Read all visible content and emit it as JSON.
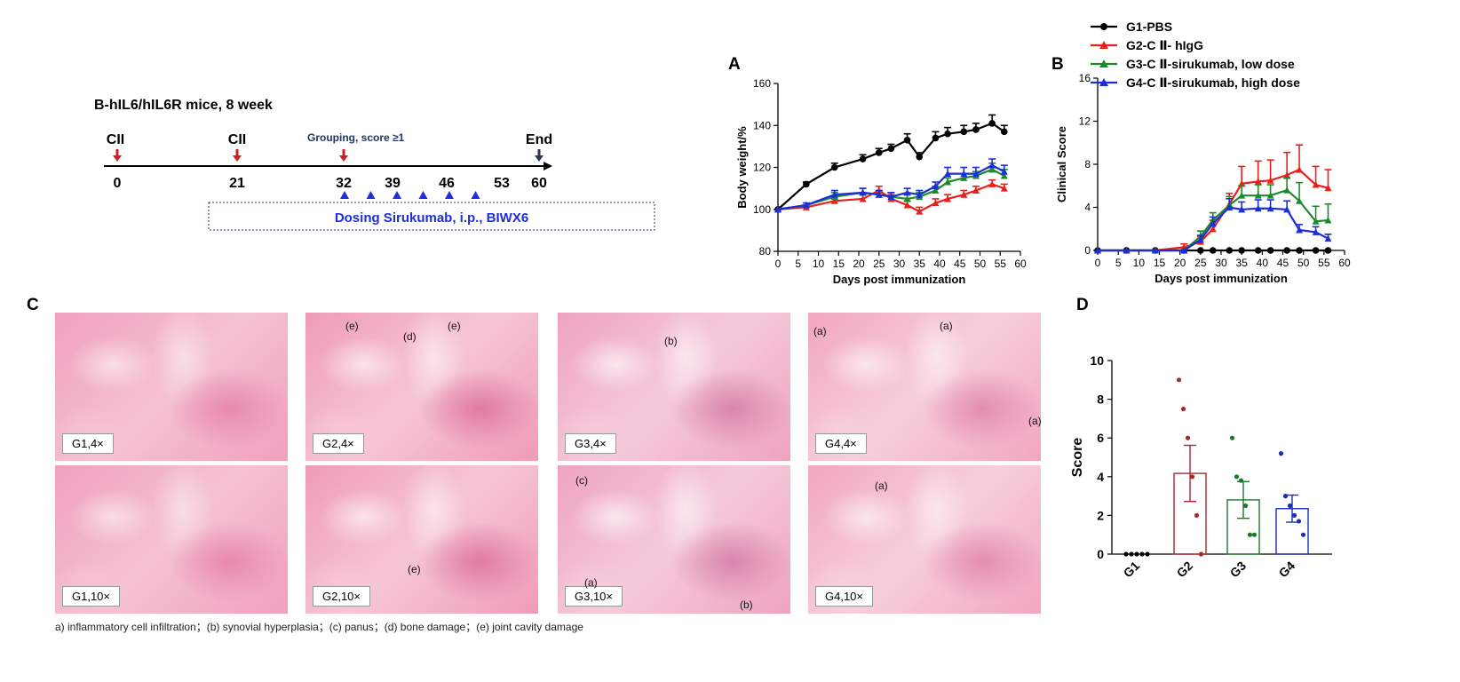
{
  "colors": {
    "G1": "#000000",
    "G2": "#e8201c",
    "G3": "#1d8a2a",
    "G4": "#1c2fd6",
    "G2_dark": "#a8272b",
    "G3_dark": "#1a7a2a",
    "G4_dark": "#1b2fb0",
    "arrow_red": "#cc1f1f",
    "arrow_navy": "#2b3a55",
    "dose_blue": "#1f2fd6",
    "timeline_text": "#1f3864"
  },
  "timeline": {
    "title": "B-hIL6/hIL6R mice,  8 week",
    "cii_label": "CII",
    "grouping_label": "Grouping,  score ≥1",
    "end_label": "End",
    "days": [
      "0",
      "21",
      "32",
      "39",
      "46",
      "53",
      "60"
    ],
    "dosing_label": "Dosing Sirukumab,  i.p.,  BIWX6",
    "dose_day_count": 6
  },
  "panel_letters": {
    "A": "A",
    "B": "B",
    "C": "C",
    "D": "D"
  },
  "legend": [
    "G1-PBS",
    "G2-C Ⅱ- hIgG",
    "G3-C Ⅱ-sirukumab, low dose",
    "G4-C Ⅱ-sirukumab, high dose"
  ],
  "histology": {
    "tiles": [
      {
        "label": "G1,4×",
        "annos": []
      },
      {
        "label": "G2,4×",
        "annos": [
          "(e)",
          "(d)",
          "(e)"
        ]
      },
      {
        "label": "G3,4×",
        "annos": [
          "(b)"
        ]
      },
      {
        "label": "G4,4×",
        "annos": [
          "(a)",
          "(a)",
          "(a)"
        ]
      },
      {
        "label": "G1,10×",
        "annos": []
      },
      {
        "label": "G2,10×",
        "annos": [
          "(e)"
        ]
      },
      {
        "label": "G3,10×",
        "annos": [
          "(c)",
          "(a)",
          "(b)"
        ]
      },
      {
        "label": "G4,10×",
        "annos": [
          "(a)"
        ]
      }
    ],
    "caption": "a) inflammatory cell infiltration；(b) synovial hyperplasia；(c) panus；(d) bone damage；(e) joint cavity damage"
  },
  "chart_data": [
    {
      "type": "line",
      "panel": "A",
      "xlabel": "Days post immunization",
      "ylabel": "Body weight/%",
      "xlim": [
        0,
        60
      ],
      "ylim": [
        80,
        160
      ],
      "xticks": [
        0,
        5,
        10,
        15,
        20,
        25,
        30,
        35,
        40,
        45,
        50,
        55,
        60
      ],
      "yticks": [
        80,
        100,
        120,
        140,
        160
      ],
      "series": [
        {
          "name": "G1-PBS",
          "marker": "circle",
          "x": [
            0,
            7,
            14,
            21,
            25,
            28,
            32,
            35,
            39,
            42,
            46,
            49,
            53,
            56
          ],
          "y": [
            100,
            112,
            120,
            124,
            127,
            129,
            133,
            125,
            134,
            136,
            137,
            138,
            141,
            137
          ],
          "err": [
            0,
            1,
            2,
            2,
            2,
            2,
            3,
            2,
            3,
            3,
            3,
            3,
            4,
            3
          ]
        },
        {
          "name": "G2-C Ⅱ- hIgG",
          "marker": "triangle",
          "x": [
            0,
            7,
            14,
            21,
            25,
            28,
            32,
            35,
            39,
            42,
            46,
            49,
            53,
            56
          ],
          "y": [
            100,
            101,
            104,
            105,
            109,
            105,
            102,
            99,
            103,
            105,
            107,
            109,
            112,
            110
          ],
          "err": [
            0,
            1,
            1,
            2,
            2,
            2,
            2,
            2,
            2,
            2,
            2,
            2,
            2,
            2
          ]
        },
        {
          "name": "G3-C Ⅱ-sirukumab, low dose",
          "marker": "triangle",
          "x": [
            0,
            7,
            14,
            21,
            25,
            28,
            32,
            35,
            39,
            42,
            46,
            49,
            53,
            56
          ],
          "y": [
            100,
            102,
            106,
            108,
            107,
            106,
            105,
            106,
            109,
            113,
            115,
            116,
            119,
            116
          ],
          "err": [
            0,
            1,
            2,
            2,
            2,
            2,
            2,
            2,
            2,
            2,
            2,
            2,
            3,
            3
          ]
        },
        {
          "name": "G4-C Ⅱ-sirukumab, high dose",
          "marker": "triangle",
          "x": [
            0,
            7,
            14,
            21,
            25,
            28,
            32,
            35,
            39,
            42,
            46,
            49,
            53,
            56
          ],
          "y": [
            100,
            102,
            107,
            108,
            107,
            106,
            108,
            107,
            111,
            117,
            117,
            117,
            121,
            118
          ],
          "err": [
            0,
            1,
            2,
            2,
            2,
            2,
            2,
            2,
            2,
            3,
            3,
            3,
            3,
            3
          ]
        }
      ]
    },
    {
      "type": "line",
      "panel": "B",
      "xlabel": "Days post immunization",
      "ylabel": "Clinical Score",
      "xlim": [
        0,
        60
      ],
      "ylim": [
        0,
        16
      ],
      "xticks": [
        0,
        5,
        10,
        15,
        20,
        25,
        30,
        35,
        40,
        45,
        50,
        55,
        60
      ],
      "yticks": [
        0,
        4,
        8,
        12,
        16
      ],
      "series": [
        {
          "name": "G1-PBS",
          "marker": "circle",
          "x": [
            0,
            7,
            14,
            21,
            25,
            28,
            32,
            35,
            39,
            42,
            46,
            49,
            53,
            56
          ],
          "y": [
            0,
            0,
            0,
            0,
            0,
            0,
            0,
            0,
            0,
            0,
            0,
            0,
            0,
            0
          ],
          "err": [
            0,
            0,
            0,
            0,
            0,
            0,
            0,
            0,
            0,
            0,
            0,
            0,
            0,
            0
          ]
        },
        {
          "name": "G2-C Ⅱ- hIgG",
          "marker": "triangle",
          "x": [
            0,
            7,
            14,
            21,
            25,
            28,
            32,
            35,
            39,
            42,
            46,
            49,
            53,
            56
          ],
          "y": [
            0,
            0,
            0,
            0.3,
            0.8,
            2,
            4.3,
            6.2,
            6.4,
            6.5,
            7,
            7.5,
            6.1,
            5.8
          ],
          "err": [
            0,
            0,
            0,
            0.3,
            0.5,
            0.8,
            1,
            1.6,
            1.9,
            1.9,
            2.1,
            2.3,
            1.7,
            1.7
          ]
        },
        {
          "name": "G3-C Ⅱ-sirukumab, low dose",
          "marker": "triangle",
          "x": [
            0,
            7,
            14,
            21,
            25,
            28,
            32,
            35,
            39,
            42,
            46,
            49,
            53,
            56
          ],
          "y": [
            0,
            0,
            0,
            0,
            1.3,
            2.8,
            4.2,
            5.1,
            5.1,
            5.1,
            5.6,
            4.6,
            2.7,
            2.8
          ],
          "err": [
            0,
            0,
            0,
            0,
            0.5,
            0.7,
            0.8,
            0.9,
            1,
            1,
            1.1,
            1.7,
            1.4,
            1.5
          ]
        },
        {
          "name": "G4-C Ⅱ-sirukumab, high dose",
          "marker": "triangle",
          "x": [
            0,
            7,
            14,
            21,
            25,
            28,
            32,
            35,
            39,
            42,
            46,
            49,
            53,
            56
          ],
          "y": [
            0,
            0,
            0,
            0,
            1,
            2.5,
            4,
            3.8,
            3.9,
            3.9,
            3.8,
            1.9,
            1.7,
            1.1
          ],
          "err": [
            0,
            0,
            0,
            0,
            0.4,
            0.6,
            0.8,
            0.7,
            0.8,
            0.8,
            0.8,
            0.5,
            0.5,
            0.4
          ]
        }
      ]
    },
    {
      "type": "bar",
      "panel": "D",
      "ylabel": "Score",
      "ylim": [
        0,
        10
      ],
      "yticks": [
        0,
        2,
        4,
        6,
        8,
        10
      ],
      "categories": [
        "G1",
        "G2",
        "G3",
        "G4"
      ],
      "values": [
        0,
        4.17,
        2.8,
        2.35
      ],
      "sem": [
        0,
        1.45,
        0.95,
        0.7
      ],
      "points": [
        [
          0,
          0,
          0,
          0,
          0
        ],
        [
          9,
          7.5,
          6,
          4,
          2,
          0
        ],
        [
          6,
          4,
          3.8,
          2.5,
          1,
          1
        ],
        [
          5.2,
          3,
          2.5,
          2,
          1.7,
          1
        ]
      ]
    }
  ]
}
